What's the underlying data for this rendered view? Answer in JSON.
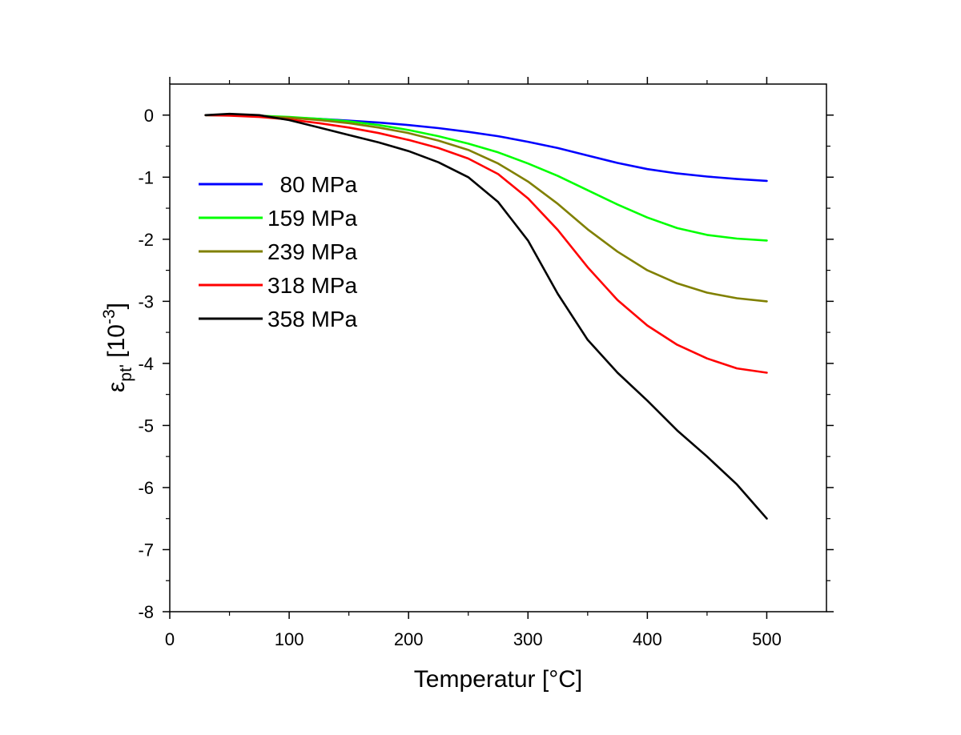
{
  "chart_data": {
    "type": "line",
    "title": "",
    "xlabel": "Temperatur [°C]",
    "ylabel": {
      "base": "ε",
      "sub": "pt'",
      "unit_prefix": " [10",
      "unit_sup": "-3",
      "unit_suffix": "]"
    },
    "xlim": [
      0,
      550
    ],
    "ylim": [
      -8,
      0.5
    ],
    "x_ticks": [
      0,
      100,
      200,
      300,
      400,
      500
    ],
    "x_tick_labels": [
      "0",
      "100",
      "200",
      "300",
      "400",
      "500"
    ],
    "y_ticks": [
      0,
      -1,
      -2,
      -3,
      -4,
      -5,
      -6,
      -7,
      -8
    ],
    "y_tick_labels": [
      "0",
      "-1",
      "-2",
      "-3",
      "-4",
      "-5",
      "-6",
      "-7",
      "-8"
    ],
    "grid": false,
    "legend_position": "upper-left",
    "series": [
      {
        "name": "  80 MPa",
        "color": "#0000ff",
        "x": [
          30,
          50,
          75,
          100,
          125,
          150,
          175,
          200,
          225,
          250,
          275,
          300,
          325,
          350,
          375,
          400,
          425,
          450,
          475,
          500
        ],
        "y": [
          0,
          0,
          -0.02,
          -0.04,
          -0.06,
          -0.09,
          -0.12,
          -0.16,
          -0.21,
          -0.27,
          -0.34,
          -0.43,
          -0.53,
          -0.65,
          -0.77,
          -0.87,
          -0.94,
          -0.99,
          -1.03,
          -1.06
        ]
      },
      {
        "name": "159 MPa",
        "color": "#00ff00",
        "x": [
          30,
          50,
          75,
          100,
          125,
          150,
          175,
          200,
          225,
          250,
          275,
          300,
          325,
          350,
          375,
          400,
          425,
          450,
          475,
          500
        ],
        "y": [
          0,
          0,
          -0.01,
          -0.03,
          -0.06,
          -0.1,
          -0.16,
          -0.24,
          -0.34,
          -0.46,
          -0.6,
          -0.78,
          -0.98,
          -1.21,
          -1.44,
          -1.65,
          -1.82,
          -1.93,
          -1.99,
          -2.02
        ]
      },
      {
        "name": "239 MPa",
        "color": "#808000",
        "x": [
          30,
          50,
          75,
          100,
          125,
          150,
          175,
          200,
          225,
          250,
          275,
          300,
          325,
          350,
          375,
          400,
          425,
          450,
          475,
          500
        ],
        "y": [
          0,
          0,
          -0.02,
          -0.04,
          -0.08,
          -0.13,
          -0.2,
          -0.29,
          -0.41,
          -0.56,
          -0.78,
          -1.07,
          -1.43,
          -1.84,
          -2.2,
          -2.5,
          -2.71,
          -2.86,
          -2.95,
          -3.0
        ]
      },
      {
        "name": "318 MPa",
        "color": "#ff0000",
        "x": [
          30,
          50,
          75,
          100,
          125,
          150,
          175,
          200,
          225,
          250,
          275,
          300,
          325,
          350,
          375,
          400,
          425,
          450,
          475,
          500
        ],
        "y": [
          0,
          -0.01,
          -0.03,
          -0.07,
          -0.13,
          -0.2,
          -0.29,
          -0.4,
          -0.53,
          -0.7,
          -0.95,
          -1.34,
          -1.85,
          -2.45,
          -2.98,
          -3.39,
          -3.7,
          -3.92,
          -4.08,
          -4.15
        ]
      },
      {
        "name": "358 MPa",
        "color": "#000000",
        "x": [
          30,
          50,
          75,
          100,
          125,
          150,
          175,
          200,
          225,
          250,
          275,
          300,
          325,
          350,
          375,
          400,
          425,
          450,
          475,
          500
        ],
        "y": [
          0,
          0.02,
          0,
          -0.08,
          -0.2,
          -0.32,
          -0.44,
          -0.58,
          -0.76,
          -1.0,
          -1.4,
          -2.02,
          -2.88,
          -3.62,
          -4.15,
          -4.6,
          -5.08,
          -5.5,
          -5.95,
          -6.5
        ]
      }
    ]
  }
}
